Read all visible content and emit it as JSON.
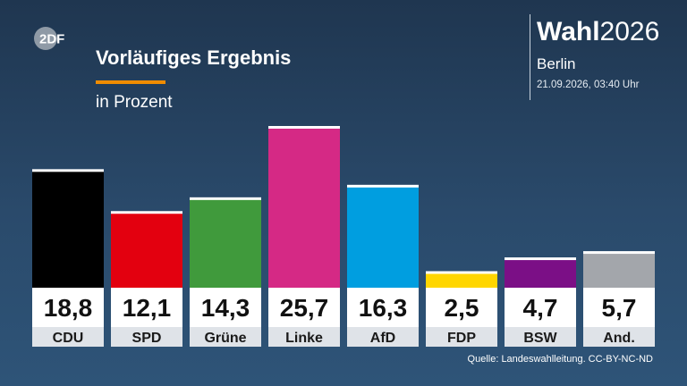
{
  "branding": {
    "logo_text": "2DF",
    "logo_icon": "zdf-logo-icon",
    "wahl_bold": "Wahl",
    "wahl_year": "2026",
    "region": "Berlin",
    "timestamp": "21.09.2026, 03:40 Uhr"
  },
  "source": "Quelle: Landeswahlleitung. CC-BY-NC-ND",
  "colors": {
    "background_top": "#1f3650",
    "background_bottom": "#2e5478",
    "accent": "#f08c00",
    "value_box": "#ffffff",
    "label_box": "#dfe3e8"
  },
  "chart_data": {
    "type": "bar",
    "title": "Vorläufiges Ergebnis",
    "subtitle": "in Prozent",
    "categories": [
      "CDU",
      "SPD",
      "Grüne",
      "Linke",
      "AfD",
      "FDP",
      "BSW",
      "And."
    ],
    "values": [
      18.8,
      12.1,
      14.3,
      25.7,
      16.3,
      2.5,
      4.7,
      5.7
    ],
    "value_labels": [
      "18,8",
      "12,1",
      "14,3",
      "25,7",
      "16,3",
      "2,5",
      "4,7",
      "5,7"
    ],
    "colors": [
      "#000000",
      "#e3000f",
      "#409a3c",
      "#d52985",
      "#009ee0",
      "#ffd600",
      "#7b0f86",
      "#a3a6ab"
    ],
    "ylim": [
      0,
      25.7
    ],
    "grid": false,
    "legend": "none"
  }
}
